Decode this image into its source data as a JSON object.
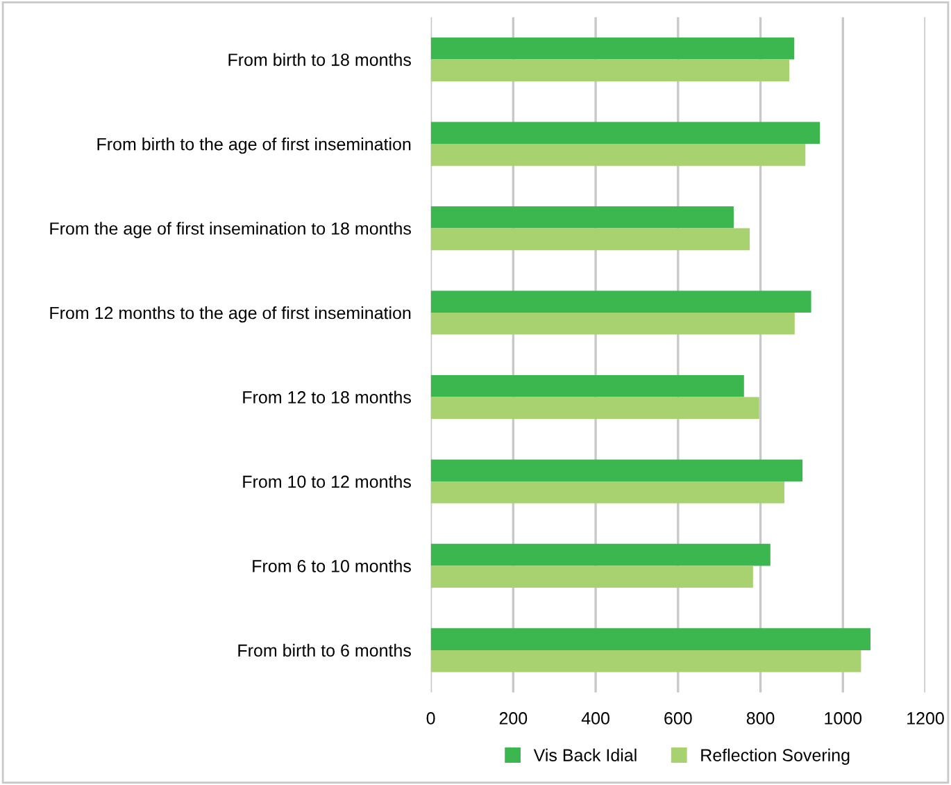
{
  "chart_data": {
    "type": "bar",
    "orientation": "horizontal",
    "categories": [
      "From birth to 18 months",
      "From birth to the age of first insemination",
      "From the age of first insemination to 18 months",
      "From 12 months to the age of first insemination",
      "From 12 to 18 months",
      "From 10 to 12 months",
      "From 6 to 10 months",
      "From birth to 6 months"
    ],
    "series": [
      {
        "name": "Vis Back Idial",
        "color": "#3cb64f",
        "values": [
          882,
          944,
          735,
          923,
          760,
          902,
          824,
          1067
        ]
      },
      {
        "name": "Reflection Sovering",
        "color": "#a8d26f",
        "values": [
          870,
          909,
          774,
          883,
          797,
          858,
          782,
          1044
        ]
      }
    ],
    "xlim": [
      0,
      1200
    ],
    "xticks": [
      0,
      200,
      400,
      600,
      800,
      1000,
      1200
    ],
    "grid": "x",
    "legend": "bottom"
  }
}
